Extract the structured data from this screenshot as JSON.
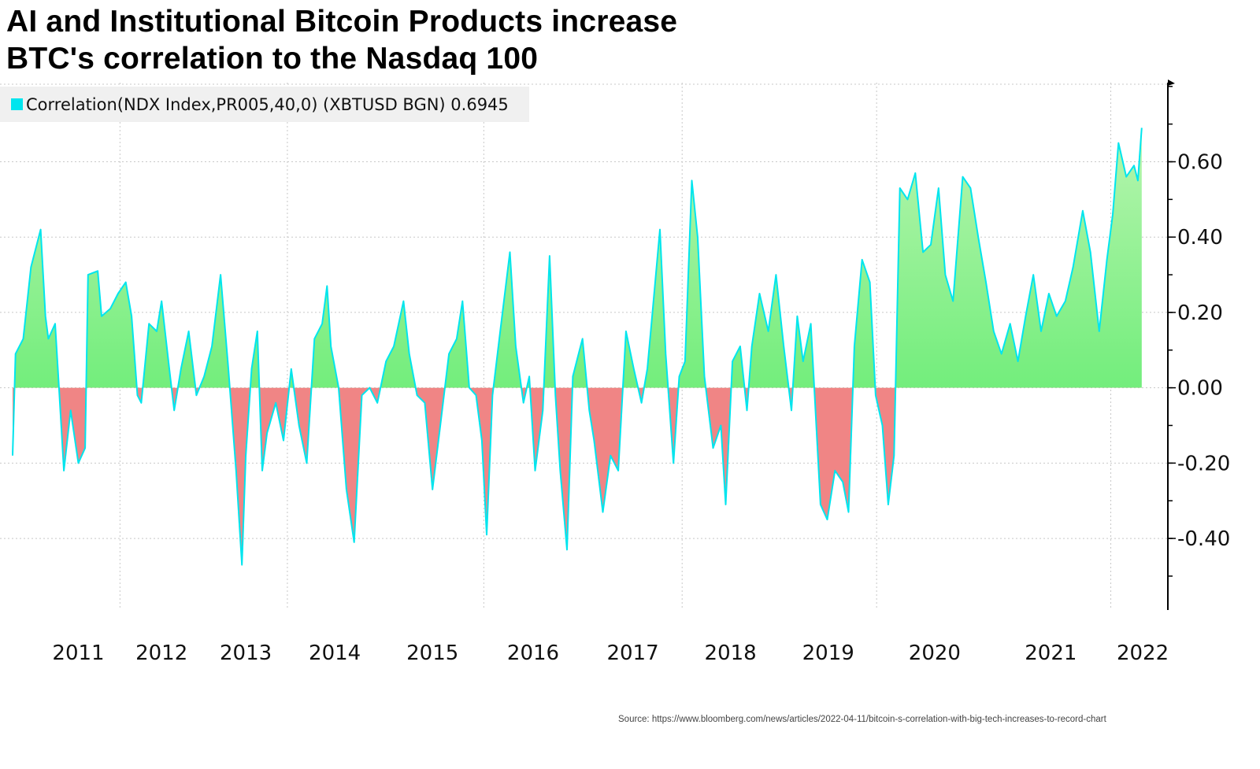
{
  "title_line1": "AI and Institutional Bitcoin Products increase",
  "title_line2": "BTC's correlation to the Nasdaq 100",
  "source": "Source: https://www.bloomberg.com/news/articles/2022-04-11/bitcoin-s-correlation-with-big-tech-increases-to-record-chart",
  "colors": {
    "line": "#00e5ee",
    "positive_top": "#b6f5ae",
    "positive_bottom": "#45e85a",
    "negative": "#f08585",
    "grid": "#c8c8c8"
  },
  "chart_data": {
    "type": "area",
    "title": "AI and Institutional Bitcoin Products increase BTC's correlation to the Nasdaq 100",
    "legend": {
      "label": "Correlation(NDX Index,PR005,40,0) (XBTUSD BGN) 0.6945",
      "placement": "top-left"
    },
    "xlabel": "",
    "ylabel": "",
    "xlim": [
      2010.19,
      2022.26
    ],
    "ylim": [
      -0.59,
      0.81
    ],
    "x_tick_labels": [
      {
        "label": "2011",
        "x": 2011.0
      },
      {
        "label": "2012",
        "x": 2011.86
      },
      {
        "label": "2013",
        "x": 2012.73
      },
      {
        "label": "2014",
        "x": 2013.65
      },
      {
        "label": "2015",
        "x": 2014.66
      },
      {
        "label": "2016",
        "x": 2015.7
      },
      {
        "label": "2017",
        "x": 2016.73
      },
      {
        "label": "2018",
        "x": 2017.74
      },
      {
        "label": "2019",
        "x": 2018.75
      },
      {
        "label": "2020",
        "x": 2019.85
      },
      {
        "label": "2021",
        "x": 2021.05
      },
      {
        "label": "2022",
        "x": 2022.0
      }
    ],
    "x_gridlines": [
      2011.43,
      2013.16,
      2015.19,
      2017.24,
      2019.25,
      2021.67
    ],
    "y_ticks": [
      0.6,
      0.4,
      0.2,
      0.0,
      -0.2,
      -0.4
    ],
    "y_tick_labels": [
      "0.60",
      "0.40",
      "0.20",
      "0.00",
      "-0.20",
      "-0.40"
    ],
    "y_minor_step": 0.1,
    "grid": true,
    "last_value": 0.6945,
    "points": [
      [
        2010.32,
        -0.18
      ],
      [
        2010.35,
        0.09
      ],
      [
        2010.43,
        0.13
      ],
      [
        2010.51,
        0.32
      ],
      [
        2010.61,
        0.42
      ],
      [
        2010.66,
        0.19
      ],
      [
        2010.69,
        0.13
      ],
      [
        2010.76,
        0.17
      ],
      [
        2010.8,
        0.0
      ],
      [
        2010.85,
        -0.22
      ],
      [
        2010.92,
        -0.06
      ],
      [
        2011.0,
        -0.2
      ],
      [
        2011.07,
        -0.16
      ],
      [
        2011.1,
        0.3
      ],
      [
        2011.2,
        0.31
      ],
      [
        2011.24,
        0.19
      ],
      [
        2011.33,
        0.21
      ],
      [
        2011.41,
        0.25
      ],
      [
        2011.49,
        0.28
      ],
      [
        2011.55,
        0.19
      ],
      [
        2011.61,
        -0.02
      ],
      [
        2011.65,
        -0.04
      ],
      [
        2011.73,
        0.17
      ],
      [
        2011.81,
        0.15
      ],
      [
        2011.86,
        0.23
      ],
      [
        2011.94,
        0.05
      ],
      [
        2011.99,
        -0.06
      ],
      [
        2012.06,
        0.05
      ],
      [
        2012.14,
        0.15
      ],
      [
        2012.22,
        -0.02
      ],
      [
        2012.3,
        0.03
      ],
      [
        2012.38,
        0.11
      ],
      [
        2012.47,
        0.3
      ],
      [
        2012.55,
        0.05
      ],
      [
        2012.63,
        -0.22
      ],
      [
        2012.69,
        -0.47
      ],
      [
        2012.73,
        -0.18
      ],
      [
        2012.79,
        0.05
      ],
      [
        2012.85,
        0.15
      ],
      [
        2012.9,
        -0.22
      ],
      [
        2012.95,
        -0.12
      ],
      [
        2013.04,
        -0.04
      ],
      [
        2013.12,
        -0.14
      ],
      [
        2013.2,
        0.05
      ],
      [
        2013.28,
        -0.1
      ],
      [
        2013.36,
        -0.2
      ],
      [
        2013.44,
        0.13
      ],
      [
        2013.52,
        0.17
      ],
      [
        2013.57,
        0.27
      ],
      [
        2013.61,
        0.11
      ],
      [
        2013.69,
        0.0
      ],
      [
        2013.77,
        -0.27
      ],
      [
        2013.85,
        -0.41
      ],
      [
        2013.93,
        -0.02
      ],
      [
        2014.01,
        0.0
      ],
      [
        2014.09,
        -0.04
      ],
      [
        2014.18,
        0.07
      ],
      [
        2014.26,
        0.11
      ],
      [
        2014.36,
        0.23
      ],
      [
        2014.42,
        0.09
      ],
      [
        2014.5,
        -0.02
      ],
      [
        2014.58,
        -0.04
      ],
      [
        2014.66,
        -0.27
      ],
      [
        2014.75,
        -0.08
      ],
      [
        2014.83,
        0.09
      ],
      [
        2014.91,
        0.13
      ],
      [
        2014.97,
        0.23
      ],
      [
        2015.04,
        0.0
      ],
      [
        2015.11,
        -0.02
      ],
      [
        2015.17,
        -0.14
      ],
      [
        2015.22,
        -0.39
      ],
      [
        2015.28,
        -0.02
      ],
      [
        2015.36,
        0.15
      ],
      [
        2015.46,
        0.36
      ],
      [
        2015.52,
        0.11
      ],
      [
        2015.6,
        -0.04
      ],
      [
        2015.66,
        0.03
      ],
      [
        2015.72,
        -0.22
      ],
      [
        2015.8,
        -0.06
      ],
      [
        2015.87,
        0.35
      ],
      [
        2015.93,
        -0.02
      ],
      [
        2015.98,
        -0.22
      ],
      [
        2016.05,
        -0.43
      ],
      [
        2016.11,
        0.03
      ],
      [
        2016.17,
        0.09
      ],
      [
        2016.21,
        0.13
      ],
      [
        2016.28,
        -0.06
      ],
      [
        2016.33,
        -0.14
      ],
      [
        2016.42,
        -0.33
      ],
      [
        2016.5,
        -0.18
      ],
      [
        2016.58,
        -0.22
      ],
      [
        2016.66,
        0.15
      ],
      [
        2016.74,
        0.05
      ],
      [
        2016.82,
        -0.04
      ],
      [
        2016.88,
        0.05
      ],
      [
        2016.93,
        0.19
      ],
      [
        2017.01,
        0.42
      ],
      [
        2017.07,
        0.09
      ],
      [
        2017.15,
        -0.2
      ],
      [
        2017.21,
        0.03
      ],
      [
        2017.27,
        0.07
      ],
      [
        2017.34,
        0.55
      ],
      [
        2017.4,
        0.4
      ],
      [
        2017.47,
        0.03
      ],
      [
        2017.56,
        -0.16
      ],
      [
        2017.64,
        -0.1
      ],
      [
        2017.69,
        -0.31
      ],
      [
        2017.76,
        0.07
      ],
      [
        2017.84,
        0.11
      ],
      [
        2017.91,
        -0.06
      ],
      [
        2017.96,
        0.11
      ],
      [
        2018.04,
        0.25
      ],
      [
        2018.13,
        0.15
      ],
      [
        2018.21,
        0.3
      ],
      [
        2018.29,
        0.11
      ],
      [
        2018.37,
        -0.06
      ],
      [
        2018.43,
        0.19
      ],
      [
        2018.49,
        0.07
      ],
      [
        2018.57,
        0.17
      ],
      [
        2018.61,
        -0.02
      ],
      [
        2018.67,
        -0.31
      ],
      [
        2018.74,
        -0.35
      ],
      [
        2018.82,
        -0.22
      ],
      [
        2018.9,
        -0.25
      ],
      [
        2018.96,
        -0.33
      ],
      [
        2019.02,
        0.11
      ],
      [
        2019.1,
        0.34
      ],
      [
        2019.18,
        0.28
      ],
      [
        2019.24,
        -0.02
      ],
      [
        2019.31,
        -0.1
      ],
      [
        2019.37,
        -0.31
      ],
      [
        2019.43,
        -0.18
      ],
      [
        2019.49,
        0.53
      ],
      [
        2019.57,
        0.5
      ],
      [
        2019.65,
        0.57
      ],
      [
        2019.73,
        0.36
      ],
      [
        2019.81,
        0.38
      ],
      [
        2019.89,
        0.53
      ],
      [
        2019.96,
        0.3
      ],
      [
        2020.04,
        0.23
      ],
      [
        2020.14,
        0.56
      ],
      [
        2020.22,
        0.53
      ],
      [
        2020.3,
        0.4
      ],
      [
        2020.38,
        0.28
      ],
      [
        2020.46,
        0.15
      ],
      [
        2020.54,
        0.09
      ],
      [
        2020.63,
        0.17
      ],
      [
        2020.71,
        0.07
      ],
      [
        2020.79,
        0.19
      ],
      [
        2020.87,
        0.3
      ],
      [
        2020.95,
        0.15
      ],
      [
        2021.03,
        0.25
      ],
      [
        2021.11,
        0.19
      ],
      [
        2021.2,
        0.23
      ],
      [
        2021.28,
        0.32
      ],
      [
        2021.38,
        0.47
      ],
      [
        2021.46,
        0.36
      ],
      [
        2021.55,
        0.15
      ],
      [
        2021.63,
        0.34
      ],
      [
        2021.69,
        0.46
      ],
      [
        2021.75,
        0.65
      ],
      [
        2021.83,
        0.56
      ],
      [
        2021.91,
        0.59
      ],
      [
        2021.95,
        0.55
      ],
      [
        2021.99,
        0.69
      ]
    ]
  }
}
